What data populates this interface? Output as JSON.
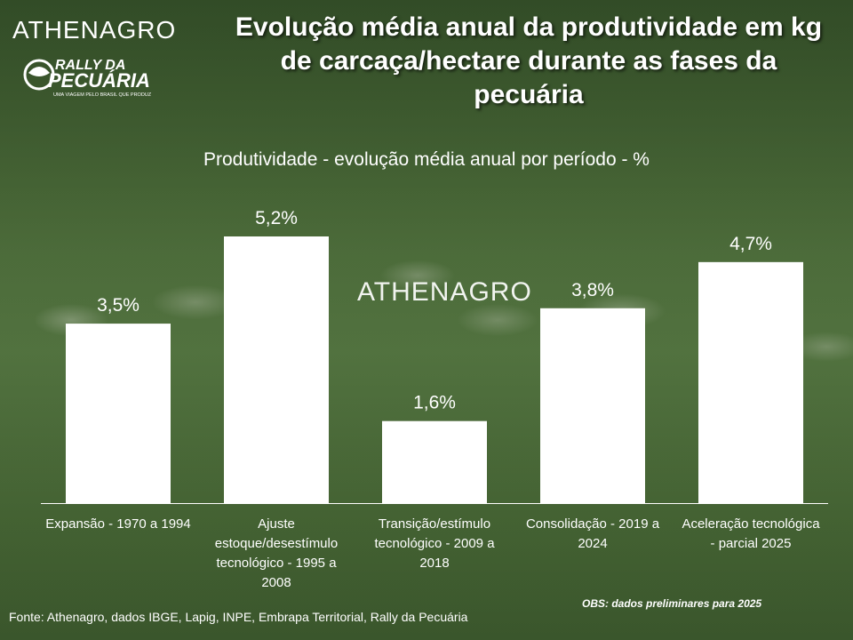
{
  "header": {
    "brand": "ATHENAGRO",
    "rally_logo_line1": "RALLY DA",
    "rally_logo_line2": "PECUÁRIA",
    "rally_tagline": "UMA VIAGEM PELO BRASIL QUE PRODUZ",
    "title": "Evolução média anual da produtividade em kg de carcaça/hectare durante as fases da pecuária"
  },
  "colors": {
    "bar": "#ffffff",
    "text": "#ffffff",
    "axis": "#ffffff"
  },
  "chart_data": {
    "type": "bar",
    "title": "Produtividade - evolução média anual por período - %",
    "categories": [
      "Expansão  - 1970 a 1994",
      "Ajuste estoque/desestímulo tecnológico - 1995 a 2008",
      "Transição/estímulo tecnológico - 2009 a 2018",
      "Consolidação - 2019 a 2024",
      "Aceleração tecnológica - parcial 2025"
    ],
    "values": [
      3.5,
      5.2,
      1.6,
      3.8,
      4.7
    ],
    "data_labels": [
      "3,5%",
      "5,2%",
      "1,6%",
      "3,8%",
      "4,7%"
    ],
    "unit": "%",
    "ylim": [
      0,
      6
    ],
    "grid": false,
    "legend": "none"
  },
  "watermark": "ATHENAGRO",
  "footer": {
    "source": "Fonte: Athenagro, dados IBGE, Lapig,  INPE, Embrapa Territorial, Rally da Pecuária",
    "note": "OBS: dados preliminares para 2025"
  }
}
